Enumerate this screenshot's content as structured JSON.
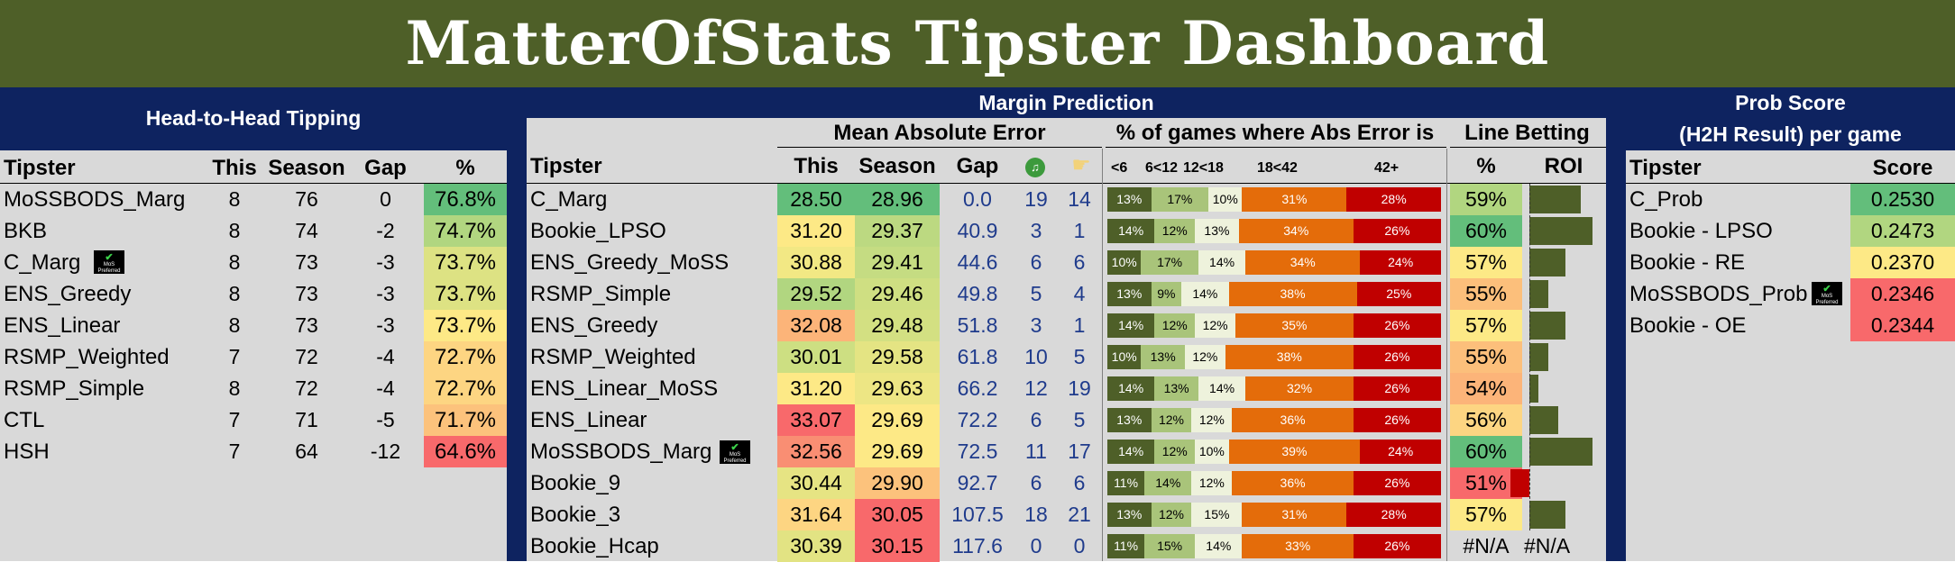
{
  "title": "MatterOfStats Tipster Dashboard",
  "colors": {
    "olive": "#4e5f28",
    "navy": "#0e2360",
    "panel": "#d9d9d9"
  },
  "h2h": {
    "header": "Head-to-Head Tipping",
    "columns": [
      "Tipster",
      "This",
      "Season",
      "Gap",
      "%"
    ],
    "rows": [
      {
        "tipster": "MoSSBODS_Marg",
        "this": "8",
        "season": "76",
        "gap": "0",
        "pct": "76.8%",
        "color": "#63be7b"
      },
      {
        "tipster": "BKB",
        "this": "8",
        "season": "74",
        "gap": "-2",
        "pct": "74.7%",
        "color": "#b1d680"
      },
      {
        "tipster": "C_Marg",
        "this": "8",
        "season": "73",
        "gap": "-3",
        "pct": "73.7%",
        "color": "#dde283",
        "badge": true
      },
      {
        "tipster": "ENS_Greedy",
        "this": "8",
        "season": "73",
        "gap": "-3",
        "pct": "73.7%",
        "color": "#dde283"
      },
      {
        "tipster": "ENS_Linear",
        "this": "8",
        "season": "73",
        "gap": "-3",
        "pct": "73.7%",
        "color": "#fde986"
      },
      {
        "tipster": "RSMP_Weighted",
        "this": "7",
        "season": "72",
        "gap": "-4",
        "pct": "72.7%",
        "color": "#fdd582"
      },
      {
        "tipster": "RSMP_Simple",
        "this": "8",
        "season": "72",
        "gap": "-4",
        "pct": "72.7%",
        "color": "#fdd582"
      },
      {
        "tipster": "CTL",
        "this": "7",
        "season": "71",
        "gap": "-5",
        "pct": "71.7%",
        "color": "#fcc27c"
      },
      {
        "tipster": "HSH",
        "this": "7",
        "season": "64",
        "gap": "-12",
        "pct": "64.6%",
        "color": "#f8696b"
      }
    ]
  },
  "margin": {
    "header": "Margin Prediction",
    "groups": {
      "mae": "Mean Absolute Error",
      "pct": "% of games where Abs Error is",
      "line": "Line Betting"
    },
    "columns": {
      "tipster": "Tipster",
      "this": "This",
      "season": "Season",
      "gap": "Gap",
      "pct": "%",
      "roi": "ROI"
    },
    "error_bins": [
      "<6",
      "6<12",
      "12<18",
      "18<42",
      "42+"
    ],
    "icons": {
      "tick": "green-circle-icon",
      "hand": "pointing-hand-icon"
    },
    "rows": [
      {
        "tipster": "C_Marg",
        "this": "28.50",
        "season": "28.96",
        "gap": "0.0",
        "a": "19",
        "b": "14",
        "pct": "59%",
        "segs": [
          "13%",
          "17%",
          "10%",
          "31%",
          "28%"
        ],
        "roi": 0.68,
        "thisColor": "#63be7b",
        "seasonColor": "#63be7b",
        "pctColor": "#b1d680"
      },
      {
        "tipster": "Bookie_LPSO",
        "this": "31.20",
        "season": "29.37",
        "gap": "40.9",
        "a": "3",
        "b": "1",
        "pct": "60%",
        "segs": [
          "14%",
          "12%",
          "13%",
          "34%",
          "26%"
        ],
        "roi": 0.83,
        "thisColor": "#fde986",
        "seasonColor": "#bcd981",
        "pctColor": "#63be7b"
      },
      {
        "tipster": "ENS_Greedy_MoSS",
        "this": "30.88",
        "season": "29.41",
        "gap": "44.6",
        "a": "6",
        "b": "6",
        "pct": "57%",
        "segs": [
          "10%",
          "17%",
          "14%",
          "34%",
          "24%"
        ],
        "roi": 0.48,
        "thisColor": "#f2e884",
        "seasonColor": "#c5dc82",
        "pctColor": "#fde986"
      },
      {
        "tipster": "RSMP_Simple",
        "this": "29.52",
        "season": "29.46",
        "gap": "49.8",
        "a": "5",
        "b": "4",
        "pct": "55%",
        "segs": [
          "13%",
          "9%",
          "14%",
          "38%",
          "25%"
        ],
        "roi": 0.25,
        "thisColor": "#b1d680",
        "seasonColor": "#cfdf82",
        "pctColor": "#fcbf7b"
      },
      {
        "tipster": "ENS_Greedy",
        "this": "32.08",
        "season": "29.48",
        "gap": "51.8",
        "a": "3",
        "b": "1",
        "pct": "57%",
        "segs": [
          "14%",
          "12%",
          "12%",
          "35%",
          "26%"
        ],
        "roi": 0.48,
        "thisColor": "#fcb479",
        "seasonColor": "#d3e082",
        "pctColor": "#fde986"
      },
      {
        "tipster": "RSMP_Weighted",
        "this": "30.01",
        "season": "29.58",
        "gap": "61.8",
        "a": "10",
        "b": "5",
        "pct": "55%",
        "segs": [
          "10%",
          "13%",
          "12%",
          "38%",
          "26%"
        ],
        "roi": 0.25,
        "thisColor": "#cddf82",
        "seasonColor": "#e4e483",
        "pctColor": "#fcbf7b"
      },
      {
        "tipster": "ENS_Linear_MoSS",
        "this": "31.20",
        "season": "29.63",
        "gap": "66.2",
        "a": "12",
        "b": "19",
        "pct": "54%",
        "segs": [
          "14%",
          "13%",
          "14%",
          "32%",
          "26%"
        ],
        "roi": 0.12,
        "thisColor": "#fde986",
        "seasonColor": "#ede684",
        "pctColor": "#fcb479"
      },
      {
        "tipster": "ENS_Linear",
        "this": "33.07",
        "season": "29.69",
        "gap": "72.2",
        "a": "6",
        "b": "5",
        "pct": "56%",
        "segs": [
          "13%",
          "12%",
          "12%",
          "36%",
          "26%"
        ],
        "roi": 0.38,
        "thisColor": "#f8696b",
        "seasonColor": "#fde986",
        "pctColor": "#fdd582"
      },
      {
        "tipster": "MoSSBODS_Marg",
        "this": "32.56",
        "season": "29.69",
        "gap": "72.5",
        "a": "11",
        "b": "17",
        "pct": "60%",
        "segs": [
          "14%",
          "12%",
          "10%",
          "39%",
          "24%"
        ],
        "roi": 0.83,
        "thisColor": "#f98e73",
        "seasonColor": "#fde986",
        "pctColor": "#63be7b",
        "badge": true
      },
      {
        "tipster": "Bookie_9",
        "this": "30.44",
        "season": "29.90",
        "gap": "92.7",
        "a": "6",
        "b": "6",
        "pct": "51%",
        "segs": [
          "11%",
          "14%",
          "12%",
          "36%",
          "26%"
        ],
        "roi": -0.25,
        "thisColor": "#e6e483",
        "seasonColor": "#fcc27c",
        "pctColor": "#f8696b"
      },
      {
        "tipster": "Bookie_3",
        "this": "31.64",
        "season": "30.05",
        "gap": "107.5",
        "a": "18",
        "b": "21",
        "pct": "57%",
        "segs": [
          "13%",
          "12%",
          "15%",
          "31%",
          "28%"
        ],
        "roi": 0.48,
        "thisColor": "#fdd582",
        "seasonColor": "#f8696b",
        "pctColor": "#fde986"
      },
      {
        "tipster": "Bookie_Hcap",
        "this": "30.39",
        "season": "30.15",
        "gap": "117.6",
        "a": "0",
        "b": "0",
        "pct": "#N/A",
        "segs": [
          "11%",
          "15%",
          "14%",
          "33%",
          "26%"
        ],
        "roi": null,
        "roiText": "#N/A",
        "thisColor": "#e2e383",
        "seasonColor": "#f8696b",
        "pctColor": ""
      }
    ]
  },
  "prob": {
    "header1": "Prob Score",
    "header2": "(H2H Result) per game",
    "columns": [
      "Tipster",
      "Score"
    ],
    "rows": [
      {
        "tipster": "C_Prob",
        "score": "0.2530",
        "color": "#63be7b"
      },
      {
        "tipster": "Bookie - LPSO",
        "score": "0.2473",
        "color": "#b1d680"
      },
      {
        "tipster": "Bookie - RE",
        "score": "0.2370",
        "color": "#fde986"
      },
      {
        "tipster": "MoSSBODS_Prob",
        "score": "0.2346",
        "color": "#f8696b",
        "badge": true
      },
      {
        "tipster": "Bookie - OE",
        "score": "0.2344",
        "color": "#f8696b"
      }
    ]
  },
  "badge": {
    "line1": "MoS",
    "line2": "Preferred"
  }
}
